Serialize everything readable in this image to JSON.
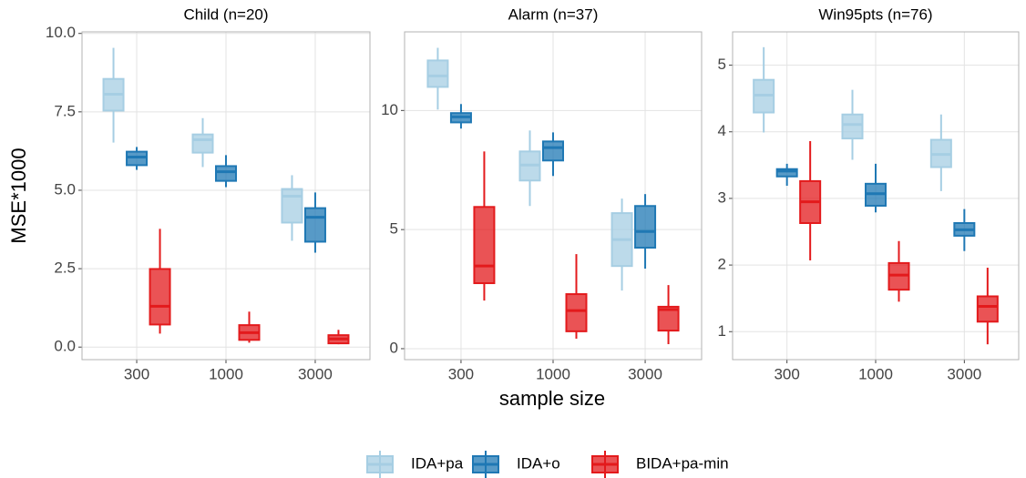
{
  "ylabel": "MSE*1000",
  "xlabel": "sample size",
  "legend": {
    "entries": [
      {
        "name": "IDA+pa",
        "color": "#a6cee3"
      },
      {
        "name": "IDA+o",
        "color": "#1f78b4"
      },
      {
        "name": "BIDA+pa-min",
        "color": "#e31a1c"
      }
    ]
  },
  "chart_data": [
    {
      "type": "box",
      "title": "Child (n=20)",
      "categories": [
        "300",
        "1000",
        "3000"
      ],
      "ylim": [
        -0.4,
        10.05
      ],
      "yticks": [
        {
          "value": 0,
          "label": "0.0"
        },
        2.5,
        {
          "value": 5,
          "label": "5.0"
        },
        7.5,
        {
          "value": 10,
          "label": "10.0"
        }
      ],
      "grid": true,
      "series": [
        {
          "values": [
            {
              "low": 6.52,
              "q1": 7.54,
              "median": 8.06,
              "q3": 8.55,
              "high": 9.54
            },
            {
              "low": 5.74,
              "q1": 6.2,
              "median": 6.61,
              "q3": 6.78,
              "high": 7.3
            },
            {
              "low": 3.39,
              "q1": 3.97,
              "median": 4.81,
              "q3": 5.04,
              "high": 5.48
            }
          ]
        },
        {
          "values": [
            {
              "low": 5.65,
              "q1": 5.8,
              "median": 6.06,
              "q3": 6.23,
              "high": 6.38
            },
            {
              "low": 5.1,
              "q1": 5.3,
              "median": 5.59,
              "q3": 5.77,
              "high": 6.12
            },
            {
              "low": 3.01,
              "q1": 3.36,
              "median": 4.14,
              "q3": 4.43,
              "high": 4.93
            }
          ]
        },
        {
          "values": [
            {
              "low": 0.43,
              "q1": 0.72,
              "median": 1.3,
              "q3": 2.49,
              "high": 3.77
            },
            {
              "low": 0.14,
              "q1": 0.23,
              "median": 0.46,
              "q3": 0.7,
              "high": 1.13
            },
            {
              "low": 0.09,
              "q1": 0.12,
              "median": 0.26,
              "q3": 0.38,
              "high": 0.55
            }
          ]
        }
      ]
    },
    {
      "type": "box",
      "title": "Alarm (n=37)",
      "categories": [
        "300",
        "1000",
        "3000"
      ],
      "ylim": [
        -0.46,
        13.3
      ],
      "yticks": [
        0,
        5,
        10
      ],
      "grid": true,
      "series": [
        {
          "values": [
            {
              "low": 10.04,
              "q1": 10.99,
              "median": 11.45,
              "q3": 12.1,
              "high": 12.63
            },
            {
              "low": 5.99,
              "q1": 7.06,
              "median": 7.71,
              "q3": 8.28,
              "high": 9.16
            },
            {
              "low": 2.44,
              "q1": 3.47,
              "median": 4.58,
              "q3": 5.69,
              "high": 6.3
            }
          ]
        },
        {
          "values": [
            {
              "low": 9.24,
              "q1": 9.5,
              "median": 9.73,
              "q3": 9.89,
              "high": 10.27
            },
            {
              "low": 7.25,
              "q1": 7.9,
              "median": 8.44,
              "q3": 8.7,
              "high": 9.08
            },
            {
              "low": 3.36,
              "q1": 4.24,
              "median": 4.92,
              "q3": 5.99,
              "high": 6.49
            }
          ]
        },
        {
          "values": [
            {
              "low": 2.02,
              "q1": 2.75,
              "median": 3.47,
              "q3": 5.95,
              "high": 8.28
            },
            {
              "low": 0.42,
              "q1": 0.73,
              "median": 1.6,
              "q3": 2.29,
              "high": 3.97
            },
            {
              "low": 0.19,
              "q1": 0.76,
              "median": 1.64,
              "q3": 1.76,
              "high": 2.67
            }
          ]
        }
      ]
    },
    {
      "type": "box",
      "title": "Win95pts (n=76)",
      "categories": [
        "300",
        "1000",
        "3000"
      ],
      "ylim": [
        0.58,
        5.5
      ],
      "yticks": [
        1,
        2,
        3,
        4,
        5
      ],
      "grid": true,
      "series": [
        {
          "values": [
            {
              "low": 3.99,
              "q1": 4.29,
              "median": 4.55,
              "q3": 4.78,
              "high": 5.27
            },
            {
              "low": 3.58,
              "q1": 3.9,
              "median": 4.11,
              "q3": 4.26,
              "high": 4.63
            },
            {
              "low": 3.11,
              "q1": 3.47,
              "median": 3.66,
              "q3": 3.88,
              "high": 4.26
            }
          ]
        },
        {
          "values": [
            {
              "low": 3.19,
              "q1": 3.33,
              "median": 3.41,
              "q3": 3.44,
              "high": 3.52
            },
            {
              "low": 2.79,
              "q1": 2.89,
              "median": 3.07,
              "q3": 3.22,
              "high": 3.52
            },
            {
              "low": 2.21,
              "q1": 2.44,
              "median": 2.53,
              "q3": 2.63,
              "high": 2.84
            }
          ]
        },
        {
          "values": [
            {
              "low": 2.07,
              "q1": 2.63,
              "median": 2.95,
              "q3": 3.26,
              "high": 3.86
            },
            {
              "low": 1.45,
              "q1": 1.63,
              "median": 1.85,
              "q3": 2.03,
              "high": 2.36
            },
            {
              "low": 0.81,
              "q1": 1.15,
              "median": 1.38,
              "q3": 1.53,
              "high": 1.96
            }
          ]
        }
      ]
    }
  ]
}
